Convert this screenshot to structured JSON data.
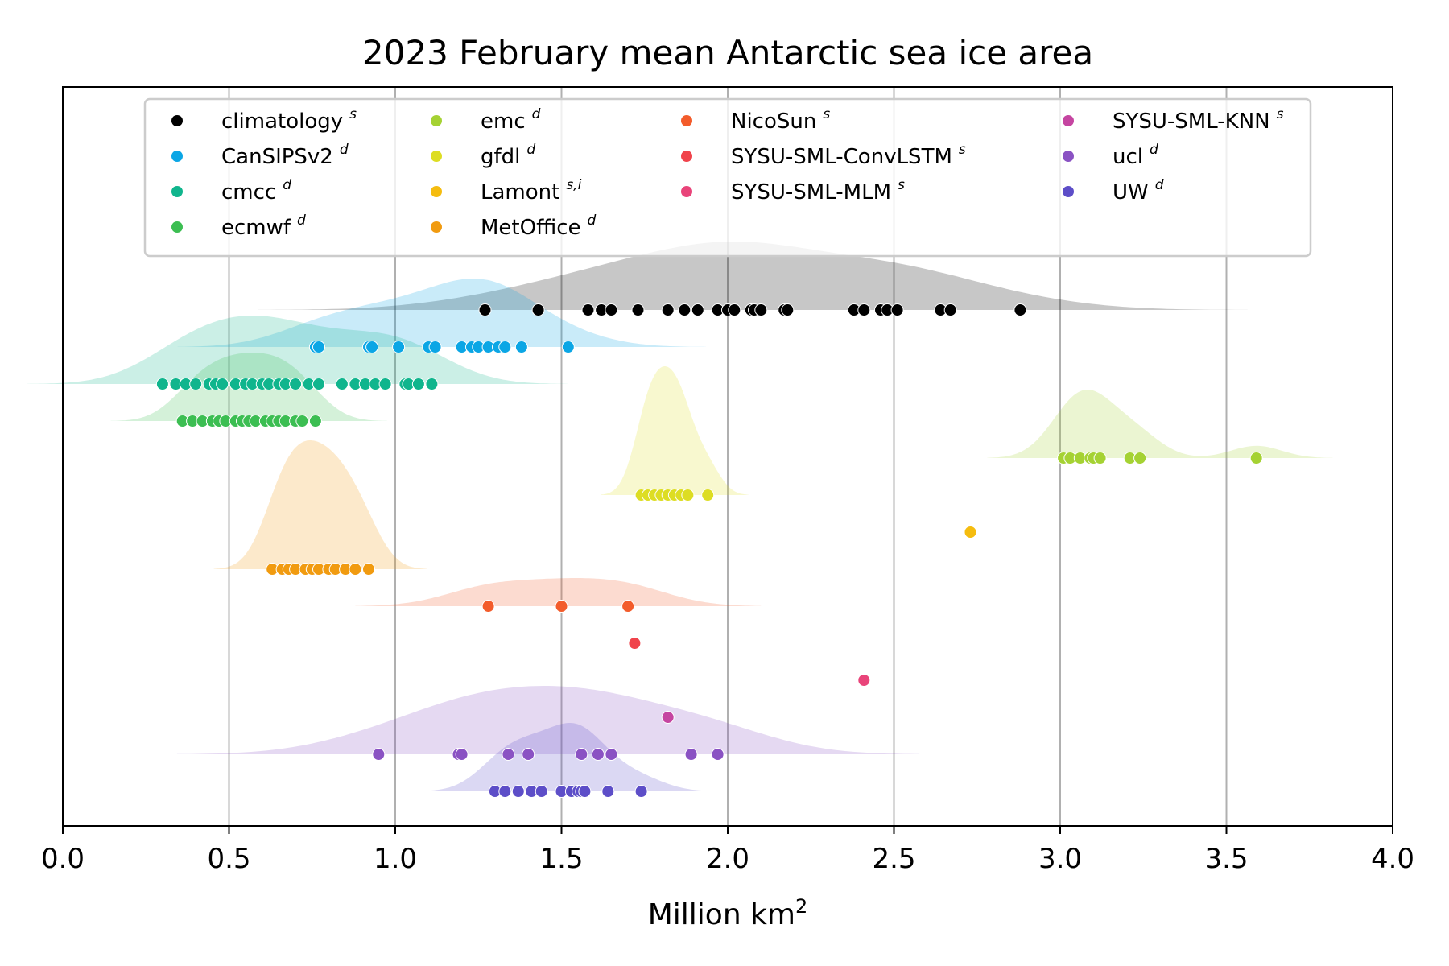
{
  "chart_data": {
    "type": "scatter",
    "title": "2023 February mean Antarctic sea ice area",
    "xlabel": "Million km",
    "xlabel_sup": "2",
    "xlim": [
      0.0,
      4.0
    ],
    "x_ticks": [
      "0.0",
      "0.5",
      "1.0",
      "1.5",
      "2.0",
      "2.5",
      "3.0",
      "3.5",
      "4.0"
    ],
    "grid": "vertical",
    "legend_placement": "upper-center",
    "series": [
      {
        "name": "climatology",
        "marker": "s",
        "color": "#000000",
        "x": [
          1.27,
          1.43,
          1.58,
          1.62,
          1.65,
          1.73,
          1.82,
          1.87,
          1.91,
          1.97,
          2.0,
          2.02,
          2.07,
          2.08,
          2.1,
          2.17,
          2.18,
          2.38,
          2.41,
          2.46,
          2.48,
          2.51,
          2.64,
          2.67,
          2.88
        ]
      },
      {
        "name": "CanSIPSv2",
        "marker": "d",
        "color": "#0ba6e5",
        "x": [
          0.76,
          0.77,
          0.92,
          0.93,
          1.01,
          1.1,
          1.12,
          1.2,
          1.23,
          1.25,
          1.28,
          1.31,
          1.33,
          1.38,
          1.52
        ]
      },
      {
        "name": "cmcc",
        "marker": "d",
        "color": "#10b58d",
        "x": [
          0.3,
          0.34,
          0.37,
          0.4,
          0.44,
          0.46,
          0.48,
          0.52,
          0.55,
          0.57,
          0.6,
          0.62,
          0.65,
          0.67,
          0.7,
          0.74,
          0.77,
          0.84,
          0.88,
          0.91,
          0.94,
          0.97,
          1.03,
          1.04,
          1.07,
          1.11
        ]
      },
      {
        "name": "ecmwf",
        "marker": "d",
        "color": "#3cbe52",
        "x": [
          0.36,
          0.39,
          0.42,
          0.45,
          0.47,
          0.49,
          0.52,
          0.54,
          0.56,
          0.58,
          0.61,
          0.63,
          0.65,
          0.67,
          0.7,
          0.72,
          0.76
        ]
      },
      {
        "name": "emc",
        "marker": "d",
        "color": "#a5d233",
        "x": [
          3.01,
          3.03,
          3.06,
          3.09,
          3.1,
          3.12,
          3.21,
          3.24,
          3.59
        ]
      },
      {
        "name": "gfdl",
        "marker": "d",
        "color": "#dddd23",
        "x": [
          1.74,
          1.76,
          1.78,
          1.8,
          1.82,
          1.84,
          1.86,
          1.88,
          1.94
        ]
      },
      {
        "name": "Lamont",
        "marker": "s,i",
        "color": "#f5bc0f",
        "x": [
          2.73
        ]
      },
      {
        "name": "MetOffice",
        "marker": "d",
        "color": "#f19b10",
        "x": [
          0.63,
          0.66,
          0.68,
          0.7,
          0.73,
          0.75,
          0.77,
          0.8,
          0.82,
          0.85,
          0.88,
          0.92
        ]
      },
      {
        "name": "NicoSun",
        "marker": "s",
        "color": "#f35c2b",
        "x": [
          1.28,
          1.5,
          1.7
        ]
      },
      {
        "name": "SYSU-SML-ConvLSTM",
        "marker": "s",
        "color": "#f0434b",
        "x": [
          1.72
        ]
      },
      {
        "name": "SYSU-SML-MLM",
        "marker": "s",
        "color": "#e9447a",
        "x": [
          2.41
        ]
      },
      {
        "name": "SYSU-SML-KNN",
        "marker": "s",
        "color": "#c545a1",
        "x": [
          1.82
        ]
      },
      {
        "name": "ucl",
        "marker": "d",
        "color": "#8a52c3",
        "x": [
          0.95,
          1.19,
          1.2,
          1.34,
          1.4,
          1.56,
          1.61,
          1.65,
          1.89,
          1.97
        ]
      },
      {
        "name": "UW",
        "marker": "d",
        "color": "#5d4ec8",
        "x": [
          1.3,
          1.33,
          1.37,
          1.41,
          1.44,
          1.5,
          1.53,
          1.55,
          1.56,
          1.57,
          1.64,
          1.74
        ]
      }
    ]
  }
}
